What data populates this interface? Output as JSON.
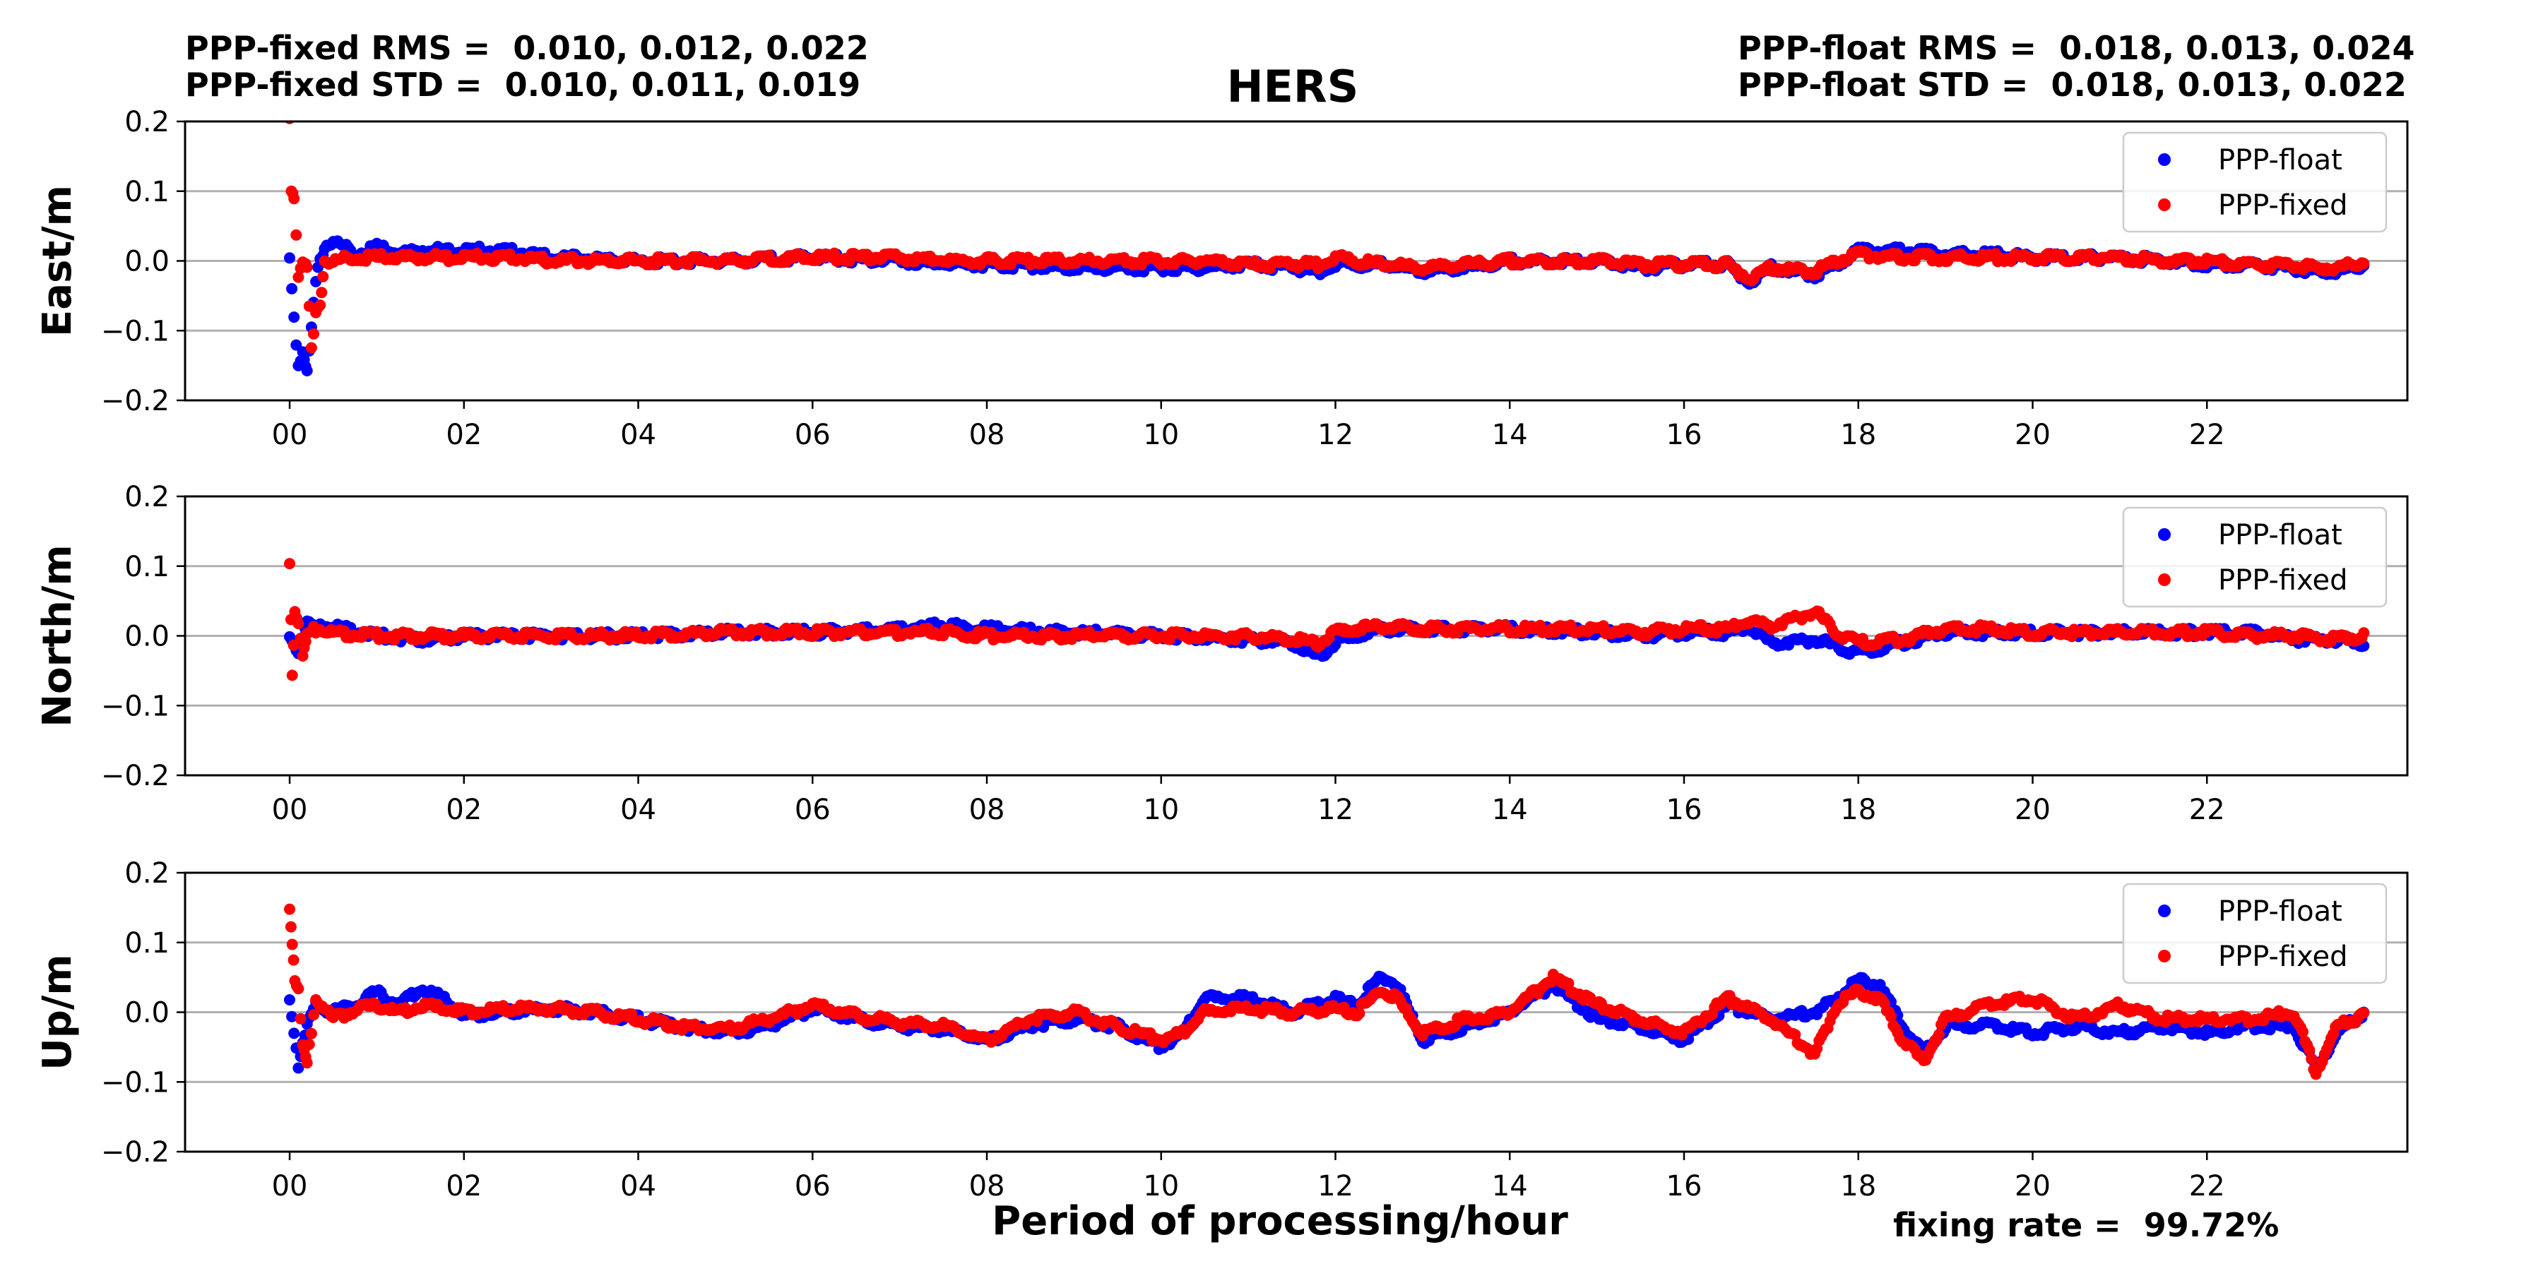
{
  "header": {
    "fixed_rms": "PPP-fixed RMS =  0.010, 0.012, 0.022",
    "fixed_std": "PPP-fixed STD =  0.010, 0.011, 0.019",
    "float_rms": "PPP-float RMS =  0.018, 0.013, 0.024",
    "float_std": "PPP-float STD =  0.018, 0.013, 0.022"
  },
  "footer": {
    "fixing_rate": "fixing rate =  99.72%"
  },
  "chart_data": {
    "type": "scatter",
    "title": "HERS",
    "xlabel": "Period of processing/hour",
    "x_unit": "hour",
    "xlim": [
      -1.2,
      24.3
    ],
    "x_ticks": [
      0,
      2,
      4,
      6,
      8,
      10,
      12,
      14,
      16,
      18,
      20,
      22
    ],
    "x_tick_labels": [
      "00",
      "02",
      "04",
      "06",
      "08",
      "10",
      "12",
      "14",
      "16",
      "18",
      "20",
      "22"
    ],
    "y_ticks": [
      -0.2,
      -0.1,
      0.0,
      0.1,
      0.2
    ],
    "y_tick_labels": [
      "−0.2",
      "−0.1",
      "0.0",
      "0.1",
      "0.2"
    ],
    "grid": "horizontal",
    "legend_position": "top-right",
    "colors": {
      "PPP-float": "#0000ff",
      "PPP-fixed": "#ff0000"
    },
    "panels": [
      {
        "ylabel": "East/m",
        "ylim": [
          -0.2,
          0.2
        ],
        "series": [
          {
            "name": "PPP-float",
            "x": [
              0,
              0.05,
              0.1,
              0.15,
              0.2,
              0.25,
              0.3,
              0.35,
              0.4,
              0.5,
              0.75,
              1.0,
              1.25,
              1.5,
              2.0,
              2.5,
              3.0,
              4.0,
              5.0,
              6.0,
              7.0,
              7.5,
              8.0,
              9.0,
              10.0,
              10.5,
              11.0,
              11.5,
              11.8,
              12.0,
              12.5,
              13.0,
              13.5,
              14.0,
              15.0,
              15.5,
              16.0,
              16.5,
              16.75,
              17.0,
              17.5,
              17.75,
              18.0,
              18.5,
              19.0,
              19.5,
              20.0,
              20.5,
              21.0,
              21.5,
              22.0,
              22.5,
              23.0,
              23.25,
              23.5,
              23.8
            ],
            "y": [
              0.0,
              -0.08,
              -0.15,
              -0.13,
              -0.16,
              -0.1,
              -0.03,
              0.0,
              0.02,
              0.03,
              0.01,
              0.02,
              0.01,
              0.015,
              0.015,
              0.015,
              0.005,
              0.0,
              0.0,
              0.005,
              0.0,
              -0.005,
              -0.005,
              -0.01,
              -0.01,
              -0.01,
              -0.005,
              -0.01,
              -0.015,
              -0.005,
              -0.005,
              -0.015,
              -0.01,
              0.0,
              0.0,
              -0.01,
              -0.005,
              -0.005,
              -0.03,
              -0.01,
              -0.02,
              -0.005,
              0.015,
              0.015,
              0.01,
              0.01,
              0.005,
              0.005,
              0.005,
              0.0,
              -0.005,
              -0.005,
              -0.01,
              -0.015,
              -0.015,
              -0.005
            ]
          },
          {
            "name": "PPP-fixed",
            "x": [
              0,
              0.02,
              0.05,
              0.1,
              0.15,
              0.2,
              0.25,
              0.3,
              0.35,
              0.4,
              0.5,
              0.75,
              1.0,
              1.25,
              1.5,
              2.0,
              2.5,
              3.0,
              4.0,
              5.0,
              6.0,
              7.0,
              7.5,
              8.0,
              9.0,
              10.0,
              10.5,
              11.0,
              11.5,
              11.8,
              12.0,
              12.5,
              13.0,
              13.5,
              14.0,
              15.0,
              15.5,
              16.0,
              16.5,
              16.75,
              17.0,
              17.5,
              17.75,
              18.0,
              18.5,
              19.0,
              19.5,
              20.0,
              20.5,
              21.0,
              21.5,
              22.0,
              22.5,
              23.0,
              23.25,
              23.5,
              23.8
            ],
            "y": [
              0.2,
              0.1,
              0.095,
              -0.02,
              0.0,
              -0.01,
              -0.13,
              -0.08,
              -0.06,
              0.0,
              0.0,
              0.005,
              0.005,
              0.005,
              0.005,
              0.005,
              0.005,
              0.0,
              0.0,
              0.0,
              0.005,
              0.005,
              0.0,
              0.0,
              0.0,
              0.0,
              0.0,
              -0.005,
              -0.005,
              -0.005,
              0.005,
              -0.005,
              -0.01,
              -0.005,
              0.0,
              0.0,
              -0.005,
              -0.005,
              -0.005,
              -0.025,
              -0.01,
              -0.015,
              0.0,
              0.01,
              0.005,
              0.005,
              0.005,
              0.005,
              0.005,
              0.005,
              0.0,
              0.0,
              -0.005,
              -0.005,
              -0.01,
              -0.01,
              0.0
            ]
          }
        ]
      },
      {
        "ylabel": "North/m",
        "ylim": [
          -0.2,
          0.2
        ],
        "series": [
          {
            "name": "PPP-float",
            "x": [
              0,
              0.1,
              0.2,
              0.3,
              0.5,
              1.0,
              1.5,
              2.0,
              3.0,
              4.0,
              5.0,
              6.0,
              7.0,
              7.5,
              8.0,
              9.0,
              10.0,
              11.0,
              11.5,
              11.8,
              12.0,
              12.5,
              13.0,
              14.0,
              15.0,
              15.5,
              16.0,
              16.5,
              16.75,
              17.0,
              17.5,
              17.75,
              18.0,
              18.5,
              19.0,
              19.5,
              20.0,
              21.0,
              22.0,
              22.5,
              23.0,
              23.5,
              23.8
            ],
            "y": [
              0.0,
              -0.02,
              0.02,
              0.01,
              0.015,
              0.0,
              -0.005,
              0.0,
              0.0,
              0.0,
              0.005,
              0.005,
              0.01,
              0.015,
              0.01,
              0.005,
              0.0,
              -0.005,
              -0.01,
              -0.03,
              -0.01,
              0.01,
              0.01,
              0.01,
              0.005,
              0.0,
              0.005,
              0.005,
              0.01,
              -0.01,
              -0.005,
              -0.015,
              -0.025,
              -0.01,
              0.005,
              0.005,
              0.005,
              0.005,
              0.005,
              0.005,
              -0.005,
              -0.005,
              -0.01
            ]
          },
          {
            "name": "PPP-fixed",
            "x": [
              0,
              0.03,
              0.06,
              0.1,
              0.15,
              0.2,
              0.3,
              0.5,
              1.0,
              1.5,
              2.0,
              3.0,
              4.0,
              5.0,
              6.0,
              7.0,
              7.5,
              8.0,
              9.0,
              10.0,
              11.0,
              11.5,
              11.8,
              12.0,
              12.5,
              13.0,
              14.0,
              15.0,
              15.5,
              16.0,
              16.5,
              16.75,
              17.0,
              17.5,
              17.75,
              18.0,
              18.5,
              19.0,
              19.5,
              20.0,
              21.0,
              22.0,
              22.5,
              23.0,
              23.5,
              23.8
            ],
            "y": [
              0.105,
              -0.055,
              0.04,
              0.02,
              -0.03,
              0.0,
              0.01,
              0.005,
              0.0,
              0.0,
              0.0,
              0.0,
              0.0,
              0.005,
              0.005,
              0.005,
              0.005,
              0.0,
              0.0,
              0.0,
              0.0,
              -0.005,
              -0.01,
              0.005,
              0.015,
              0.01,
              0.01,
              0.01,
              0.005,
              0.01,
              0.01,
              0.02,
              0.015,
              0.035,
              0.005,
              -0.01,
              -0.005,
              0.01,
              0.01,
              0.005,
              0.005,
              0.005,
              0.0,
              0.0,
              -0.005,
              0.0
            ]
          }
        ]
      },
      {
        "ylabel": "Up/m",
        "ylim": [
          -0.2,
          0.2
        ],
        "series": [
          {
            "name": "PPP-float",
            "x": [
              0,
              0.1,
              0.2,
              0.3,
              0.5,
              0.75,
              1.0,
              1.25,
              1.5,
              1.75,
              2.0,
              2.5,
              3.0,
              3.5,
              4.0,
              4.5,
              5.0,
              5.5,
              6.0,
              6.5,
              7.0,
              7.5,
              8.0,
              8.5,
              9.0,
              9.5,
              10.0,
              10.25,
              10.5,
              11.0,
              11.5,
              12.0,
              12.25,
              12.5,
              12.7,
              13.0,
              13.5,
              14.0,
              14.5,
              15.0,
              15.5,
              16.0,
              16.5,
              17.0,
              17.5,
              17.75,
              18.0,
              18.25,
              18.5,
              18.75,
              19.0,
              19.5,
              20.0,
              20.5,
              21.0,
              21.5,
              22.0,
              22.5,
              23.0,
              23.25,
              23.5,
              23.8
            ],
            "y": [
              0.02,
              -0.075,
              -0.02,
              0.01,
              0.0,
              0.01,
              0.03,
              0.01,
              0.035,
              0.02,
              -0.005,
              0.0,
              0.005,
              0.0,
              -0.01,
              -0.02,
              -0.03,
              -0.02,
              0.005,
              -0.01,
              -0.02,
              -0.025,
              -0.04,
              -0.02,
              -0.01,
              -0.02,
              -0.05,
              -0.03,
              0.02,
              0.02,
              0.0,
              0.02,
              0.01,
              0.05,
              0.04,
              -0.04,
              -0.02,
              0.0,
              0.04,
              -0.01,
              -0.02,
              -0.04,
              0.01,
              -0.01,
              0.0,
              0.02,
              0.045,
              0.04,
              -0.02,
              -0.06,
              -0.02,
              -0.02,
              -0.03,
              -0.02,
              -0.03,
              -0.02,
              -0.03,
              -0.02,
              -0.02,
              -0.08,
              -0.03,
              0.0
            ]
          },
          {
            "name": "PPP-fixed",
            "x": [
              0,
              0.03,
              0.06,
              0.1,
              0.15,
              0.2,
              0.3,
              0.5,
              0.75,
              1.0,
              1.25,
              1.5,
              1.75,
              2.0,
              2.5,
              3.0,
              3.5,
              4.0,
              4.5,
              5.0,
              5.5,
              6.0,
              6.5,
              7.0,
              7.5,
              8.0,
              8.5,
              9.0,
              9.5,
              10.0,
              10.25,
              10.5,
              11.0,
              11.5,
              12.0,
              12.25,
              12.5,
              12.7,
              13.0,
              13.5,
              14.0,
              14.5,
              15.0,
              15.5,
              16.0,
              16.5,
              17.0,
              17.5,
              17.75,
              18.0,
              18.25,
              18.5,
              18.75,
              19.0,
              19.5,
              20.0,
              20.5,
              21.0,
              21.5,
              22.0,
              22.5,
              23.0,
              23.25,
              23.5,
              23.8
            ],
            "y": [
              0.15,
              0.1,
              0.05,
              0.03,
              -0.05,
              -0.075,
              0.02,
              -0.01,
              0.005,
              0.01,
              0.0,
              0.01,
              0.005,
              0.0,
              0.005,
              0.005,
              0.0,
              -0.01,
              -0.02,
              -0.025,
              -0.01,
              0.01,
              -0.005,
              -0.015,
              -0.02,
              -0.04,
              -0.01,
              0.0,
              -0.02,
              -0.04,
              -0.03,
              0.0,
              0.005,
              0.0,
              0.005,
              0.0,
              0.03,
              0.02,
              -0.03,
              -0.01,
              0.0,
              0.05,
              0.01,
              -0.01,
              -0.03,
              0.02,
              -0.01,
              -0.06,
              0.01,
              0.03,
              0.02,
              -0.04,
              -0.07,
              -0.01,
              0.01,
              0.02,
              -0.01,
              0.01,
              -0.01,
              -0.01,
              -0.01,
              0.0,
              -0.085,
              -0.02,
              -0.005
            ]
          }
        ]
      }
    ]
  }
}
